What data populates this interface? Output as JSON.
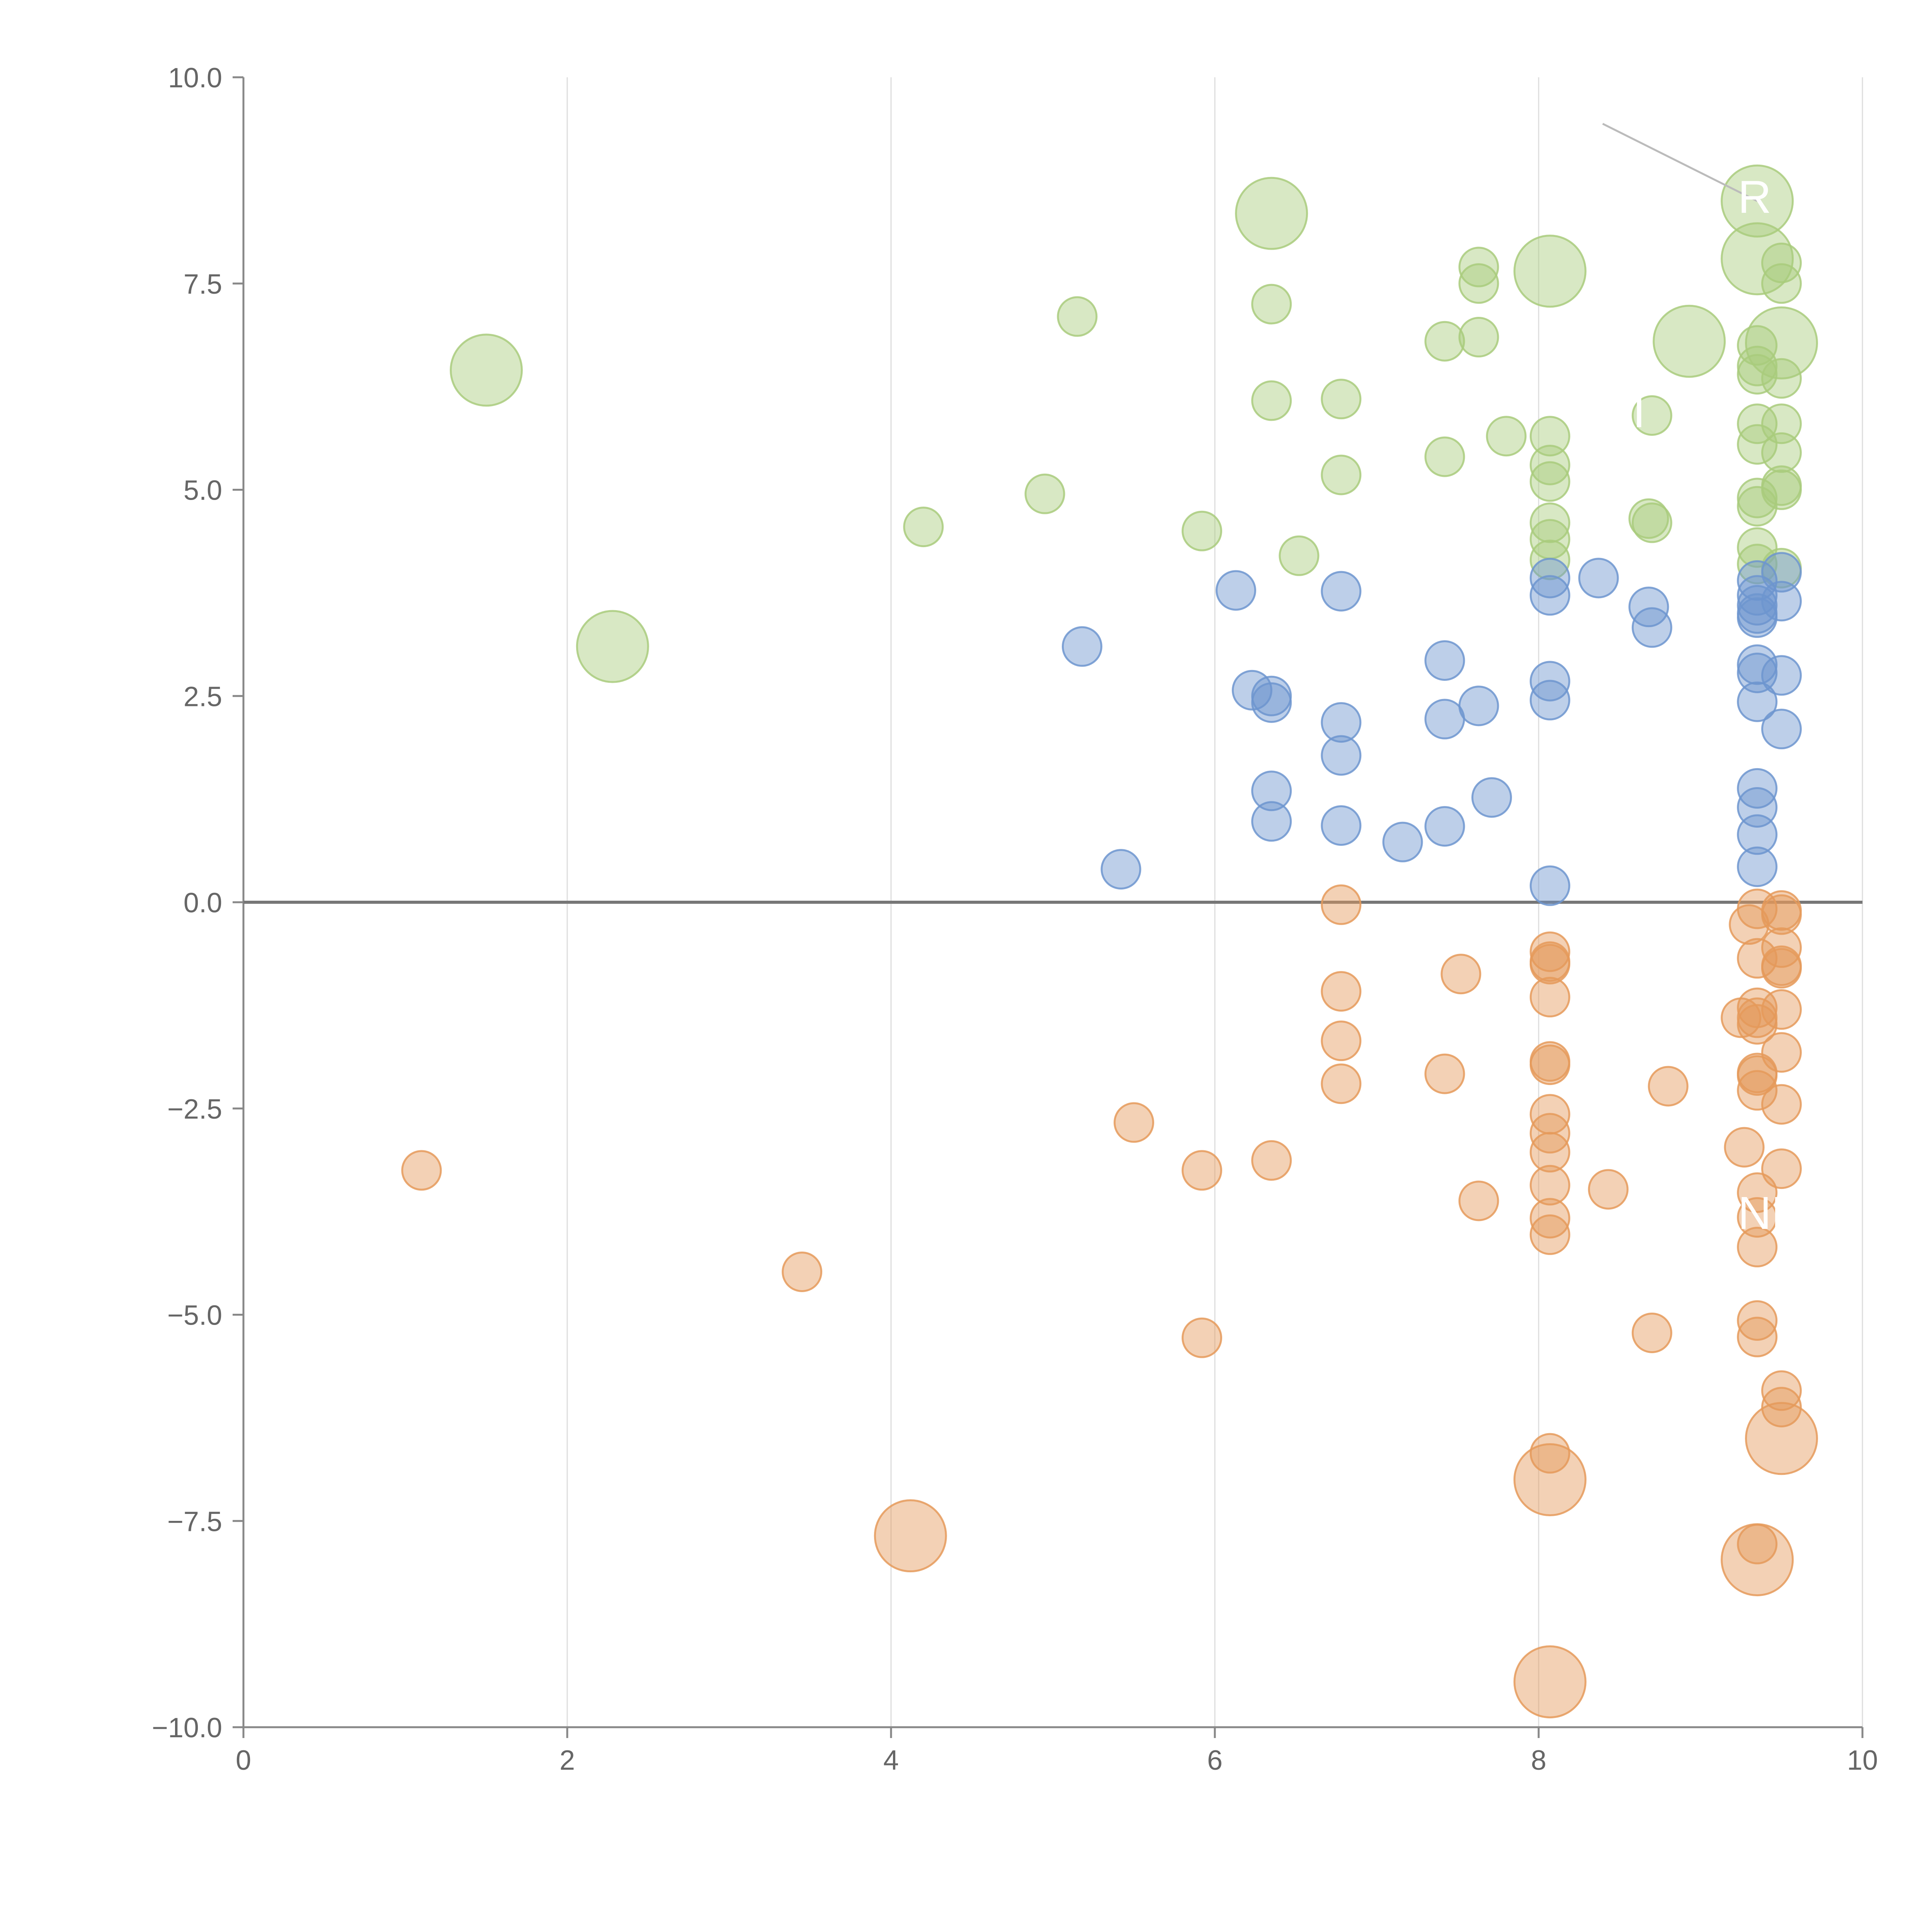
{
  "chart_data": {
    "type": "scatter",
    "title": "",
    "xlabel": "",
    "ylabel": "",
    "xlim": [
      0,
      10
    ],
    "ylim": [
      -10,
      10
    ],
    "x_ticks": [
      "0",
      "2",
      "4",
      "6",
      "8",
      "10"
    ],
    "y_ticks": [
      "10.0",
      "7.5",
      "5.0",
      "2.5",
      "0.0",
      "−2.5",
      "−5.0",
      "−7.5",
      "−10.0"
    ],
    "x_tick_values": [
      0,
      2,
      4,
      6,
      8,
      10
    ],
    "y_tick_values": [
      10,
      7.5,
      5,
      2.5,
      0,
      -2.5,
      -5,
      -7.5,
      -10
    ],
    "grid": "vertical",
    "colors": {
      "green": "#a9cb7d",
      "blue": "#6d95cf",
      "orange": "#e59a5a",
      "axis": "#888888",
      "grid": "#dddddd",
      "zero_line": "#777777"
    },
    "bubble_size_unit": "relative",
    "series": [
      {
        "name": "green",
        "color": "#a9cb7d",
        "points": [
          [
            1.5,
            6.45,
            2
          ],
          [
            2.28,
            3.1,
            2
          ],
          [
            4.2,
            4.55,
            1
          ],
          [
            4.95,
            4.95,
            1
          ],
          [
            5.15,
            7.1,
            1
          ],
          [
            5.92,
            4.5,
            1
          ],
          [
            6.35,
            8.35,
            2
          ],
          [
            6.35,
            7.25,
            1
          ],
          [
            6.35,
            6.08,
            1
          ],
          [
            6.52,
            4.2,
            1
          ],
          [
            6.78,
            6.1,
            1
          ],
          [
            6.78,
            5.18,
            1
          ],
          [
            7.42,
            6.8,
            1
          ],
          [
            7.42,
            5.4,
            1
          ],
          [
            7.63,
            7.7,
            1
          ],
          [
            7.63,
            7.5,
            1
          ],
          [
            7.63,
            6.85,
            1
          ],
          [
            7.8,
            5.65,
            1
          ],
          [
            8.07,
            7.65,
            2
          ],
          [
            8.07,
            5.65,
            1
          ],
          [
            8.07,
            5.3,
            1
          ],
          [
            8.07,
            5.1,
            1
          ],
          [
            8.07,
            4.6,
            1
          ],
          [
            8.07,
            4.4,
            1
          ],
          [
            8.07,
            4.15,
            1
          ],
          [
            8.68,
            4.65,
            1
          ],
          [
            8.7,
            4.6,
            1
          ],
          [
            8.7,
            5.9,
            1
          ],
          [
            8.93,
            6.8,
            2
          ],
          [
            9.35,
            8.5,
            2
          ],
          [
            9.35,
            7.8,
            2
          ],
          [
            9.35,
            6.75,
            1
          ],
          [
            9.35,
            6.5,
            1
          ],
          [
            9.35,
            6.4,
            1
          ],
          [
            9.35,
            5.8,
            1
          ],
          [
            9.35,
            5.55,
            1
          ],
          [
            9.35,
            4.9,
            1
          ],
          [
            9.35,
            4.8,
            1
          ],
          [
            9.35,
            4.3,
            1
          ],
          [
            9.35,
            4.1,
            1
          ],
          [
            9.5,
            7.75,
            1
          ],
          [
            9.5,
            7.5,
            1
          ],
          [
            9.5,
            6.78,
            2
          ],
          [
            9.5,
            6.35,
            1
          ],
          [
            9.5,
            5.8,
            1
          ],
          [
            9.5,
            5.45,
            1
          ],
          [
            9.5,
            5.05,
            1
          ],
          [
            9.5,
            5.0,
            1
          ],
          [
            9.5,
            4.05,
            1
          ]
        ]
      },
      {
        "name": "blue",
        "color": "#6d95cf",
        "points": [
          [
            5.18,
            3.1,
            1
          ],
          [
            5.42,
            0.4,
            1
          ],
          [
            6.13,
            3.78,
            1
          ],
          [
            6.23,
            2.57,
            1
          ],
          [
            6.35,
            2.5,
            1
          ],
          [
            6.35,
            2.42,
            1
          ],
          [
            6.35,
            1.35,
            1
          ],
          [
            6.35,
            0.98,
            1
          ],
          [
            6.78,
            3.77,
            1
          ],
          [
            6.78,
            2.18,
            1
          ],
          [
            6.78,
            1.78,
            1
          ],
          [
            6.78,
            0.93,
            1
          ],
          [
            7.16,
            0.73,
            1
          ],
          [
            7.42,
            2.93,
            1
          ],
          [
            7.42,
            2.22,
            1
          ],
          [
            7.42,
            0.92,
            1
          ],
          [
            7.63,
            2.38,
            1
          ],
          [
            7.71,
            1.27,
            1
          ],
          [
            8.07,
            3.93,
            1
          ],
          [
            8.07,
            3.72,
            1
          ],
          [
            8.07,
            2.68,
            1
          ],
          [
            8.07,
            2.45,
            1
          ],
          [
            8.07,
            0.2,
            1
          ],
          [
            8.37,
            3.93,
            1
          ],
          [
            8.68,
            3.58,
            1
          ],
          [
            8.7,
            3.33,
            1
          ],
          [
            9.35,
            3.9,
            1
          ],
          [
            9.35,
            3.72,
            1
          ],
          [
            9.35,
            3.6,
            1
          ],
          [
            9.35,
            3.5,
            1
          ],
          [
            9.35,
            3.45,
            1
          ],
          [
            9.35,
            2.88,
            1
          ],
          [
            9.35,
            2.78,
            1
          ],
          [
            9.35,
            2.43,
            1
          ],
          [
            9.35,
            1.38,
            1
          ],
          [
            9.35,
            1.15,
            1
          ],
          [
            9.35,
            0.82,
            1
          ],
          [
            9.35,
            0.43,
            1
          ],
          [
            9.5,
            4.0,
            1
          ],
          [
            9.5,
            3.65,
            1
          ],
          [
            9.5,
            2.75,
            1
          ],
          [
            9.5,
            2.1,
            1
          ]
        ]
      },
      {
        "name": "orange",
        "color": "#e59a5a",
        "points": [
          [
            1.1,
            -3.25,
            1
          ],
          [
            3.45,
            -4.48,
            1
          ],
          [
            4.12,
            -7.68,
            2
          ],
          [
            5.5,
            -2.67,
            1
          ],
          [
            5.92,
            -3.25,
            1
          ],
          [
            5.92,
            -5.28,
            1
          ],
          [
            6.35,
            -3.13,
            1
          ],
          [
            6.78,
            -0.03,
            1
          ],
          [
            6.78,
            -1.08,
            1
          ],
          [
            6.78,
            -1.68,
            1
          ],
          [
            6.78,
            -2.2,
            1
          ],
          [
            7.42,
            -2.08,
            1
          ],
          [
            7.52,
            -0.87,
            1
          ],
          [
            7.63,
            -3.62,
            1
          ],
          [
            8.07,
            -0.6,
            1
          ],
          [
            8.07,
            -0.72,
            1
          ],
          [
            8.07,
            -0.75,
            1
          ],
          [
            8.07,
            -1.15,
            1
          ],
          [
            8.07,
            -1.93,
            1
          ],
          [
            8.07,
            -1.97,
            1
          ],
          [
            8.07,
            -2.57,
            1
          ],
          [
            8.07,
            -2.8,
            1
          ],
          [
            8.07,
            -3.03,
            1
          ],
          [
            8.07,
            -3.43,
            1
          ],
          [
            8.07,
            -3.83,
            1
          ],
          [
            8.07,
            -4.03,
            1
          ],
          [
            8.07,
            -6.68,
            1
          ],
          [
            8.07,
            -7.0,
            2
          ],
          [
            8.07,
            -9.45,
            2
          ],
          [
            8.43,
            -3.48,
            1
          ],
          [
            8.7,
            -5.22,
            1
          ],
          [
            8.8,
            -2.23,
            1
          ],
          [
            9.25,
            -1.4,
            1
          ],
          [
            9.27,
            -2.97,
            1
          ],
          [
            9.3,
            -0.27,
            1
          ],
          [
            9.35,
            -0.08,
            1
          ],
          [
            9.35,
            -0.68,
            1
          ],
          [
            9.35,
            -1.28,
            1
          ],
          [
            9.35,
            -1.4,
            1
          ],
          [
            9.35,
            -1.48,
            1
          ],
          [
            9.35,
            -2.07,
            1
          ],
          [
            9.35,
            -2.1,
            1
          ],
          [
            9.35,
            -2.28,
            1
          ],
          [
            9.35,
            -3.52,
            1
          ],
          [
            9.35,
            -3.82,
            1
          ],
          [
            9.35,
            -4.18,
            1
          ],
          [
            9.35,
            -5.07,
            1
          ],
          [
            9.35,
            -5.27,
            1
          ],
          [
            9.35,
            -7.78,
            1
          ],
          [
            9.35,
            -7.97,
            2
          ],
          [
            9.5,
            -0.1,
            1
          ],
          [
            9.5,
            -0.15,
            1
          ],
          [
            9.5,
            -0.55,
            1
          ],
          [
            9.5,
            -0.77,
            1
          ],
          [
            9.5,
            -0.8,
            1
          ],
          [
            9.5,
            -1.3,
            1
          ],
          [
            9.5,
            -1.82,
            1
          ],
          [
            9.5,
            -2.45,
            1
          ],
          [
            9.5,
            -3.23,
            1
          ],
          [
            9.5,
            -5.92,
            1
          ],
          [
            9.5,
            -6.12,
            1
          ],
          [
            9.5,
            -6.5,
            2
          ]
        ]
      }
    ],
    "annotations": [
      {
        "text": "R",
        "anchor_x": 9.35,
        "anchor_y": 8.5
      },
      {
        "text": "I",
        "anchor_x": 8.7,
        "anchor_y": 5.9
      },
      {
        "text": "NE",
        "anchor_x": 9.35,
        "anchor_y": -3.82
      }
    ]
  }
}
